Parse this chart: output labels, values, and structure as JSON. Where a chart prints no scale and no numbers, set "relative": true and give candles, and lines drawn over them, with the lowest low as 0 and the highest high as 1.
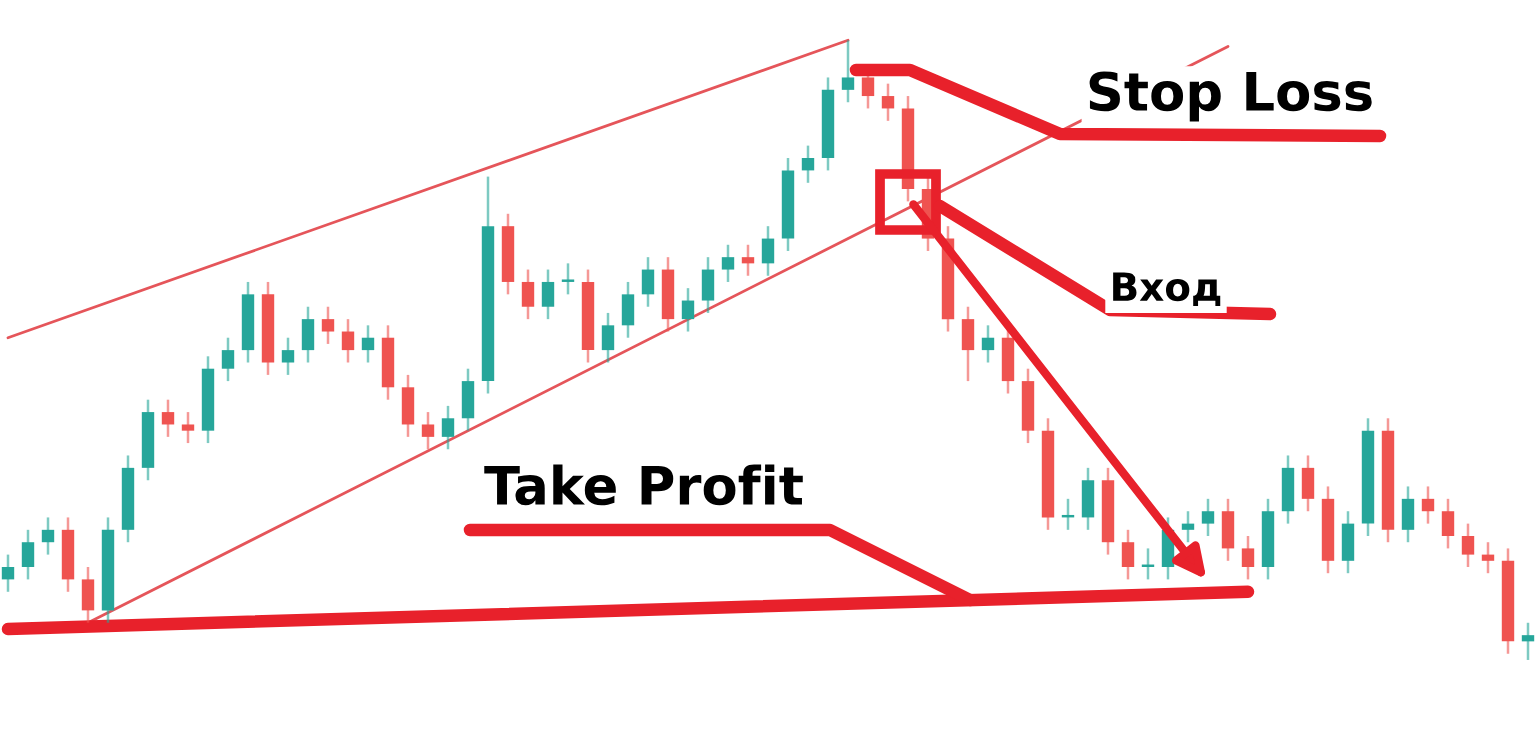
{
  "chart_data": {
    "type": "candlestick",
    "relative": true,
    "categories": [
      null,
      null,
      null,
      null,
      null,
      null,
      null,
      null,
      null,
      null,
      null,
      null,
      null,
      null,
      null,
      null,
      null,
      null,
      null,
      null,
      null,
      null,
      null,
      null,
      null,
      null,
      null,
      null,
      null,
      null,
      null,
      null,
      null,
      null,
      null,
      null,
      null,
      null,
      null,
      null,
      null,
      null,
      null,
      null,
      null,
      null,
      null,
      null,
      null,
      null,
      null,
      null,
      null,
      null,
      null,
      null,
      null,
      null,
      null,
      null,
      null,
      null,
      null,
      null,
      null,
      null,
      null,
      null,
      null,
      null,
      null,
      null,
      null,
      null,
      null,
      null,
      null
    ],
    "ohlc": [
      [
        0.13,
        0.17,
        0.11,
        0.15
      ],
      [
        0.15,
        0.21,
        0.13,
        0.19
      ],
      [
        0.19,
        0.23,
        0.17,
        0.21
      ],
      [
        0.21,
        0.23,
        0.11,
        0.13
      ],
      [
        0.13,
        0.15,
        0.06,
        0.08
      ],
      [
        0.08,
        0.23,
        0.06,
        0.21
      ],
      [
        0.21,
        0.33,
        0.19,
        0.31
      ],
      [
        0.31,
        0.42,
        0.29,
        0.4
      ],
      [
        0.4,
        0.42,
        0.36,
        0.38
      ],
      [
        0.38,
        0.4,
        0.35,
        0.37
      ],
      [
        0.37,
        0.49,
        0.35,
        0.47
      ],
      [
        0.47,
        0.52,
        0.45,
        0.5
      ],
      [
        0.5,
        0.61,
        0.48,
        0.59
      ],
      [
        0.59,
        0.61,
        0.46,
        0.48
      ],
      [
        0.48,
        0.52,
        0.46,
        0.5
      ],
      [
        0.5,
        0.57,
        0.48,
        0.55
      ],
      [
        0.55,
        0.57,
        0.51,
        0.53
      ],
      [
        0.53,
        0.55,
        0.48,
        0.5
      ],
      [
        0.5,
        0.54,
        0.48,
        0.52
      ],
      [
        0.52,
        0.54,
        0.42,
        0.44
      ],
      [
        0.44,
        0.46,
        0.36,
        0.38
      ],
      [
        0.38,
        0.4,
        0.34,
        0.36
      ],
      [
        0.36,
        0.41,
        0.34,
        0.39
      ],
      [
        0.39,
        0.47,
        0.37,
        0.45
      ],
      [
        0.45,
        0.78,
        0.43,
        0.7
      ],
      [
        0.7,
        0.72,
        0.59,
        0.61
      ],
      [
        0.61,
        0.63,
        0.55,
        0.57
      ],
      [
        0.57,
        0.63,
        0.55,
        0.61
      ],
      [
        0.61,
        0.64,
        0.59,
        0.61
      ],
      [
        0.61,
        0.63,
        0.48,
        0.5
      ],
      [
        0.5,
        0.56,
        0.48,
        0.54
      ],
      [
        0.54,
        0.61,
        0.52,
        0.59
      ],
      [
        0.59,
        0.65,
        0.57,
        0.63
      ],
      [
        0.63,
        0.65,
        0.53,
        0.55
      ],
      [
        0.55,
        0.6,
        0.53,
        0.58
      ],
      [
        0.58,
        0.65,
        0.56,
        0.63
      ],
      [
        0.63,
        0.67,
        0.61,
        0.65
      ],
      [
        0.65,
        0.67,
        0.62,
        0.64
      ],
      [
        0.64,
        0.7,
        0.62,
        0.68
      ],
      [
        0.68,
        0.81,
        0.66,
        0.79
      ],
      [
        0.79,
        0.83,
        0.77,
        0.81
      ],
      [
        0.81,
        0.94,
        0.79,
        0.92
      ],
      [
        0.92,
        1.0,
        0.9,
        0.94
      ],
      [
        0.94,
        0.96,
        0.89,
        0.91
      ],
      [
        0.91,
        0.93,
        0.87,
        0.89
      ],
      [
        0.89,
        0.91,
        0.74,
        0.76
      ],
      [
        0.76,
        0.78,
        0.66,
        0.68
      ],
      [
        0.68,
        0.7,
        0.53,
        0.55
      ],
      [
        0.55,
        0.57,
        0.45,
        0.5
      ],
      [
        0.5,
        0.54,
        0.48,
        0.52
      ],
      [
        0.52,
        0.54,
        0.43,
        0.45
      ],
      [
        0.45,
        0.47,
        0.35,
        0.37
      ],
      [
        0.37,
        0.39,
        0.21,
        0.23
      ],
      [
        0.23,
        0.26,
        0.21,
        0.23
      ],
      [
        0.23,
        0.31,
        0.21,
        0.29
      ],
      [
        0.29,
        0.31,
        0.17,
        0.19
      ],
      [
        0.19,
        0.21,
        0.13,
        0.15
      ],
      [
        0.15,
        0.18,
        0.13,
        0.15
      ],
      [
        0.15,
        0.23,
        0.13,
        0.21
      ],
      [
        0.21,
        0.24,
        0.19,
        0.22
      ],
      [
        0.22,
        0.26,
        0.2,
        0.24
      ],
      [
        0.24,
        0.26,
        0.16,
        0.18
      ],
      [
        0.18,
        0.2,
        0.13,
        0.15
      ],
      [
        0.15,
        0.26,
        0.13,
        0.24
      ],
      [
        0.24,
        0.33,
        0.22,
        0.31
      ],
      [
        0.31,
        0.33,
        0.24,
        0.26
      ],
      [
        0.26,
        0.28,
        0.14,
        0.16
      ],
      [
        0.16,
        0.24,
        0.14,
        0.22
      ],
      [
        0.22,
        0.39,
        0.2,
        0.37
      ],
      [
        0.37,
        0.39,
        0.19,
        0.21
      ],
      [
        0.21,
        0.28,
        0.19,
        0.26
      ],
      [
        0.26,
        0.28,
        0.22,
        0.24
      ],
      [
        0.24,
        0.26,
        0.18,
        0.2
      ],
      [
        0.2,
        0.22,
        0.15,
        0.17
      ],
      [
        0.17,
        0.19,
        0.14,
        0.16
      ],
      [
        0.16,
        0.18,
        0.01,
        0.03
      ],
      [
        0.03,
        0.06,
        0.0,
        0.04
      ]
    ],
    "series": [
      {
        "type": "line",
        "color": "#e5555a",
        "values": [
          0.52,
          null,
          null,
          null,
          null,
          null,
          null,
          null,
          null,
          null,
          null,
          null,
          null,
          null,
          null,
          null,
          null,
          null,
          null,
          null,
          null,
          null,
          null,
          null,
          null,
          null,
          null,
          null,
          null,
          null,
          null,
          null,
          null,
          null,
          null,
          null,
          null,
          null,
          null,
          null,
          null,
          null,
          1.0,
          null,
          null,
          null,
          null,
          null,
          null,
          null,
          null,
          null,
          null,
          null,
          null,
          null,
          null,
          null,
          null,
          null,
          null,
          null,
          null,
          null,
          null,
          null,
          null,
          null,
          null,
          null,
          null,
          null,
          null,
          null,
          null,
          null,
          null
        ]
      },
      {
        "type": "line",
        "color": "#e5555a",
        "values": [
          null,
          null,
          null,
          null,
          0.06,
          null,
          null,
          null,
          null,
          null,
          null,
          null,
          null,
          null,
          null,
          null,
          null,
          null,
          null,
          null,
          null,
          null,
          null,
          null,
          null,
          null,
          null,
          null,
          null,
          null,
          null,
          null,
          null,
          null,
          null,
          null,
          null,
          null,
          null,
          null,
          null,
          null,
          null,
          null,
          null,
          null,
          null,
          null,
          null,
          null,
          null,
          null,
          null,
          null,
          null,
          null,
          null,
          null,
          null,
          null,
          null,
          0.99,
          null,
          null,
          null,
          null,
          null,
          null,
          null,
          null,
          null,
          null,
          null,
          null,
          null,
          null,
          null
        ]
      },
      {
        "type": "line",
        "color": "#e8212b",
        "values": [
          0.05,
          null,
          null,
          null,
          null,
          null,
          null,
          null,
          null,
          null,
          null,
          null,
          null,
          null,
          null,
          null,
          null,
          null,
          null,
          null,
          null,
          null,
          null,
          null,
          null,
          null,
          null,
          null,
          null,
          null,
          null,
          null,
          null,
          null,
          null,
          null,
          null,
          null,
          null,
          null,
          null,
          null,
          null,
          null,
          null,
          null,
          null,
          null,
          null,
          null,
          null,
          null,
          null,
          null,
          null,
          null,
          null,
          null,
          null,
          null,
          null,
          null,
          0.11,
          null,
          null,
          null,
          null,
          null,
          null,
          null,
          null,
          null,
          null,
          null,
          null,
          null,
          null
        ]
      }
    ],
    "annotations": [
      "Stop Loss",
      "Вход",
      "Take Profit"
    ]
  }
}
